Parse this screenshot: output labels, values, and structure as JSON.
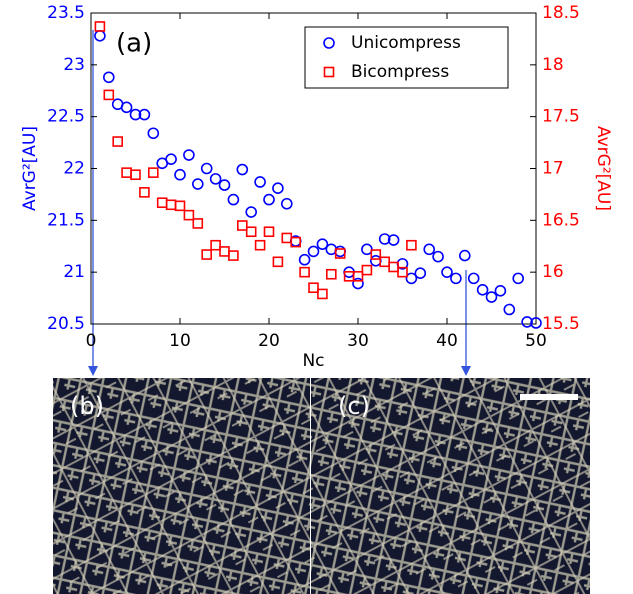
{
  "chart_data": {
    "type": "scatter",
    "annotation": "(a)",
    "xlabel": "Nc",
    "ylabel": "AvrG²[AU]",
    "y2label": "AvrG²[AU]",
    "ylabel_color": "#0000ff",
    "y2label_color": "#ff0000",
    "xlim": [
      0,
      50
    ],
    "xticks": [
      0,
      10,
      20,
      30,
      40,
      50
    ],
    "ylim": [
      20.5,
      23.5
    ],
    "yticks": [
      20.5,
      21,
      21.5,
      22,
      22.5,
      23,
      23.5
    ],
    "y2lim": [
      15.5,
      18.5
    ],
    "y2ticks": [
      15.5,
      16,
      16.5,
      17,
      17.5,
      18,
      18.5
    ],
    "legend": "upper right",
    "series": [
      {
        "name": "Unicompress",
        "color": "#0000ff",
        "marker": "circle",
        "x": [
          1,
          2,
          3,
          4,
          5,
          6,
          7,
          8,
          9,
          10,
          11,
          12,
          13,
          14,
          15,
          16,
          17,
          18,
          19,
          20,
          21,
          22,
          23,
          24,
          25,
          26,
          27,
          28,
          29,
          30,
          31,
          32,
          33,
          34,
          35,
          36,
          37,
          38,
          39,
          40,
          41,
          42,
          43,
          44,
          45,
          46,
          47,
          48,
          49,
          50
        ],
        "values": [
          23.28,
          22.88,
          22.62,
          22.59,
          22.52,
          22.52,
          22.34,
          22.05,
          22.09,
          21.94,
          22.13,
          21.85,
          22.0,
          21.9,
          21.84,
          21.7,
          21.99,
          21.58,
          21.87,
          21.7,
          21.81,
          21.66,
          21.3,
          21.12,
          21.2,
          21.27,
          21.22,
          21.2,
          21.0,
          20.89,
          21.22,
          21.11,
          21.32,
          21.31,
          21.08,
          20.94,
          20.99,
          21.22,
          21.15,
          21.0,
          20.94,
          21.16,
          20.94,
          20.83,
          20.76,
          20.82,
          20.64,
          20.94,
          20.52,
          20.51
        ]
      },
      {
        "name": "Bicompress",
        "color": "#ff0000",
        "marker": "square",
        "axis": "y2",
        "x": [
          1,
          2,
          3,
          4,
          5,
          6,
          7,
          8,
          9,
          10,
          11,
          12,
          13,
          14,
          15,
          16,
          17,
          18,
          19,
          20,
          21,
          22,
          23,
          24,
          25,
          26,
          27,
          28,
          29,
          30,
          31,
          32,
          33,
          34,
          35,
          36
        ],
        "values": [
          18.37,
          17.71,
          17.26,
          16.96,
          16.94,
          16.77,
          16.96,
          16.67,
          16.65,
          16.64,
          16.55,
          16.47,
          16.17,
          16.26,
          16.2,
          16.16,
          16.45,
          16.39,
          16.26,
          16.39,
          16.1,
          16.33,
          16.29,
          16.0,
          15.85,
          15.79,
          15.98,
          16.18,
          15.96,
          15.96,
          16.02,
          16.17,
          16.1,
          16.05,
          16.0,
          16.26
        ]
      }
    ]
  },
  "panels": [
    {
      "label": "(b)"
    },
    {
      "label": "(c)"
    }
  ]
}
